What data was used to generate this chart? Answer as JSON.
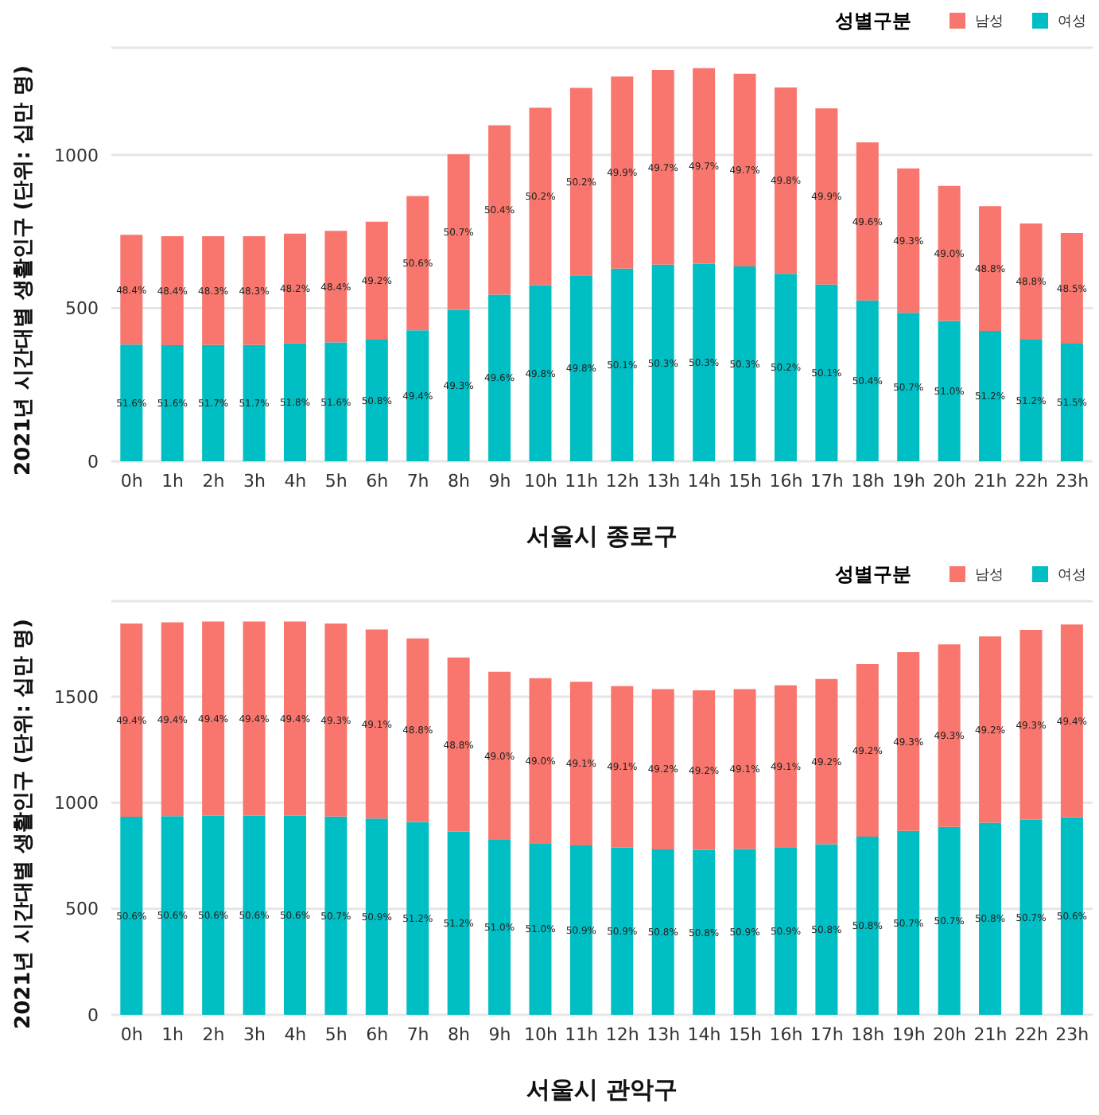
{
  "chart_data": [
    {
      "type": "bar",
      "stacked": true,
      "xlabel": "서울시 종로구",
      "ylabel": "2021년 시간대별 생활인구 (단위: 십만 명)",
      "legend_title": "성별구분",
      "legend": "top right",
      "grid": "y",
      "categories": [
        "0h",
        "1h",
        "2h",
        "3h",
        "4h",
        "5h",
        "6h",
        "7h",
        "8h",
        "9h",
        "10h",
        "11h",
        "12h",
        "13h",
        "14h",
        "15h",
        "16h",
        "17h",
        "18h",
        "19h",
        "20h",
        "21h",
        "22h",
        "23h"
      ],
      "ylim": [
        0,
        1350
      ],
      "yticks": [
        0,
        500,
        1000
      ],
      "series": [
        {
          "name": "여성",
          "color": "#00bfc4",
          "values": [
            381,
            379,
            380,
            380,
            385,
            388,
            397,
            428,
            494,
            544,
            575,
            607,
            629,
            642,
            645,
            636,
            612,
            577,
            525,
            485,
            458,
            426,
            397,
            384
          ]
        },
        {
          "name": "남성",
          "color": "#f8766d",
          "values": [
            358,
            356,
            355,
            355,
            358,
            364,
            385,
            438,
            508,
            553,
            579,
            612,
            627,
            635,
            638,
            629,
            608,
            575,
            516,
            471,
            441,
            407,
            379,
            361
          ]
        }
      ],
      "annotations": [
        "51.6%",
        "51.6%",
        "51.7%",
        "51.7%",
        "51.8%",
        "51.6%",
        "50.8%",
        "49.4%",
        "49.3%",
        "49.6%",
        "49.8%",
        "49.8%",
        "50.1%",
        "50.3%",
        "50.3%",
        "50.3%",
        "50.2%",
        "50.1%",
        "50.4%",
        "50.7%",
        "51.0%",
        "51.2%",
        "51.2%",
        "51.5%",
        "48.4%",
        "48.4%",
        "48.3%",
        "48.3%",
        "48.2%",
        "48.4%",
        "49.2%",
        "50.6%",
        "50.7%",
        "50.4%",
        "50.2%",
        "50.2%",
        "49.9%",
        "49.7%",
        "49.7%",
        "49.7%",
        "49.8%",
        "49.9%",
        "49.6%",
        "49.3%",
        "49.0%",
        "48.8%",
        "48.8%",
        "48.5%"
      ]
    },
    {
      "type": "bar",
      "stacked": true,
      "xlabel": "서울시 관악구",
      "ylabel": "2021년 시간대별 생활인구 (단위: 십만 명)",
      "legend_title": "성별구분",
      "legend": "top right",
      "grid": "y",
      "categories": [
        "0h",
        "1h",
        "2h",
        "3h",
        "4h",
        "5h",
        "6h",
        "7h",
        "8h",
        "9h",
        "10h",
        "11h",
        "12h",
        "13h",
        "14h",
        "15h",
        "16h",
        "17h",
        "18h",
        "19h",
        "20h",
        "21h",
        "22h",
        "23h"
      ],
      "ylim": [
        0,
        1950
      ],
      "yticks": [
        0,
        500,
        1000,
        1500
      ],
      "series": [
        {
          "name": "여성",
          "color": "#00bfc4",
          "values": [
            934,
            937,
            938,
            938,
            938,
            935,
            925,
            909,
            863,
            825,
            809,
            799,
            789,
            780,
            777,
            782,
            790,
            804,
            840,
            867,
            886,
            906,
            920,
            931
          ]
        },
        {
          "name": "남성",
          "color": "#f8766d",
          "values": [
            911,
            914,
            916,
            916,
            916,
            910,
            892,
            866,
            822,
            792,
            778,
            771,
            761,
            756,
            753,
            754,
            763,
            779,
            814,
            843,
            861,
            878,
            895,
            909
          ]
        }
      ],
      "annotations": [
        "50.6%",
        "50.6%",
        "50.6%",
        "50.6%",
        "50.6%",
        "50.7%",
        "50.9%",
        "51.2%",
        "51.2%",
        "51.0%",
        "51.0%",
        "50.9%",
        "50.9%",
        "50.8%",
        "50.8%",
        "50.9%",
        "50.9%",
        "50.8%",
        "50.8%",
        "50.7%",
        "50.7%",
        "50.8%",
        "50.7%",
        "50.6%",
        "49.4%",
        "49.4%",
        "49.4%",
        "49.4%",
        "49.4%",
        "49.3%",
        "49.1%",
        "48.8%",
        "48.8%",
        "49.0%",
        "49.0%",
        "49.1%",
        "49.1%",
        "49.2%",
        "49.2%",
        "49.1%",
        "49.1%",
        "49.2%",
        "49.2%",
        "49.3%",
        "49.3%",
        "49.2%",
        "49.3%",
        "49.4%"
      ]
    }
  ]
}
